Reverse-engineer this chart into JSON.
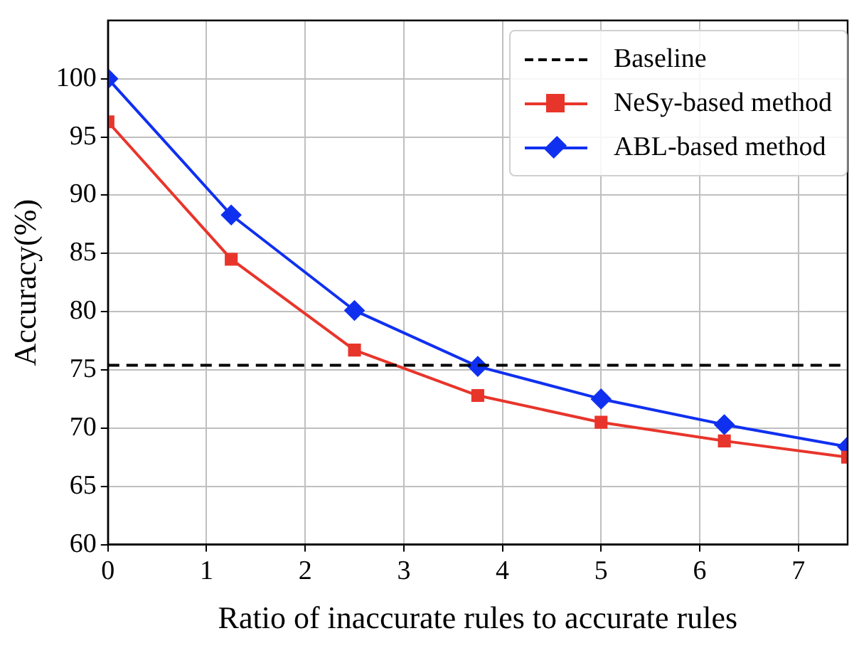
{
  "chart_data": {
    "type": "line",
    "xlabel": "Ratio of inaccurate rules to accurate rules",
    "ylabel": "Accuracy(%)",
    "xlim": [
      0,
      7.5
    ],
    "xticks": [
      0,
      1,
      2,
      3,
      4,
      5,
      6,
      7
    ],
    "ylim": [
      60,
      105
    ],
    "yticks": [
      60,
      65,
      70,
      75,
      80,
      85,
      90,
      95,
      100
    ],
    "grid": true,
    "legend": "top right",
    "line_style": "solid",
    "series": [
      {
        "name": "Baseline",
        "color": "#000000",
        "x": [
          0,
          7.5
        ],
        "values": [
          75.4,
          75.4
        ],
        "line_style": "dashed",
        "marker": "none"
      },
      {
        "name": "NeSy-based method",
        "color": "#e8352b",
        "x": [
          0,
          1.25,
          2.5,
          3.75,
          5,
          6.25,
          7.5
        ],
        "values": [
          96.3,
          84.5,
          76.7,
          72.8,
          70.5,
          68.9,
          67.5
        ],
        "marker": "square"
      },
      {
        "name": "ABL-based method",
        "color": "#1030f0",
        "x": [
          0,
          1.25,
          2.5,
          3.75,
          5,
          6.25,
          7.5
        ],
        "values": [
          100,
          88.3,
          80.1,
          75.3,
          72.5,
          70.3,
          68.4
        ],
        "marker": "diamond"
      }
    ]
  }
}
